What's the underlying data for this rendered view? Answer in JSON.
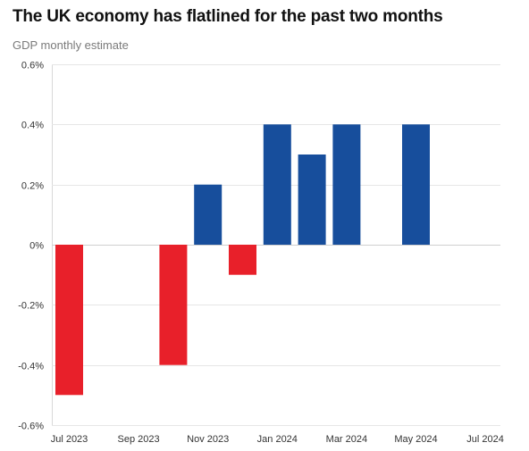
{
  "title": "The UK economy has flatlined for the past two months",
  "subtitle": "GDP monthly estimate",
  "colors": {
    "positive": "#174e9c",
    "negative": "#e8202a",
    "grid": "#e6e6e6",
    "zero_line": "#cfcfcf"
  },
  "chart_data": {
    "type": "bar",
    "title": "The UK economy has flatlined for the past two months",
    "subtitle": "GDP monthly estimate",
    "xlabel": "",
    "ylabel": "",
    "categories": [
      "Jul 2023",
      "Aug 2023",
      "Sep 2023",
      "Oct 2023",
      "Nov 2023",
      "Dec 2023",
      "Jan 2024",
      "Feb 2024",
      "Mar 2024",
      "Apr 2024",
      "May 2024",
      "Jun 2024",
      "Jul 2024"
    ],
    "x_tick_labels": [
      "Jul 2023",
      "Sep 2023",
      "Nov 2023",
      "Jan 2024",
      "Mar 2024",
      "May 2024",
      "Jul 2024"
    ],
    "values": [
      -0.5,
      0.0,
      0.0,
      -0.4,
      0.2,
      -0.1,
      0.4,
      0.3,
      0.4,
      0.0,
      0.4,
      0.0,
      0.0
    ],
    "y_ticks": [
      0.6,
      0.4,
      0.2,
      0,
      -0.2,
      -0.4,
      -0.6
    ],
    "y_tick_labels": [
      "0.6%",
      "0.4%",
      "0.2%",
      "0%",
      "-0.2%",
      "-0.4%",
      "-0.6%"
    ],
    "ylim": [
      -0.6,
      0.6
    ],
    "grid": true,
    "legend": "none"
  }
}
